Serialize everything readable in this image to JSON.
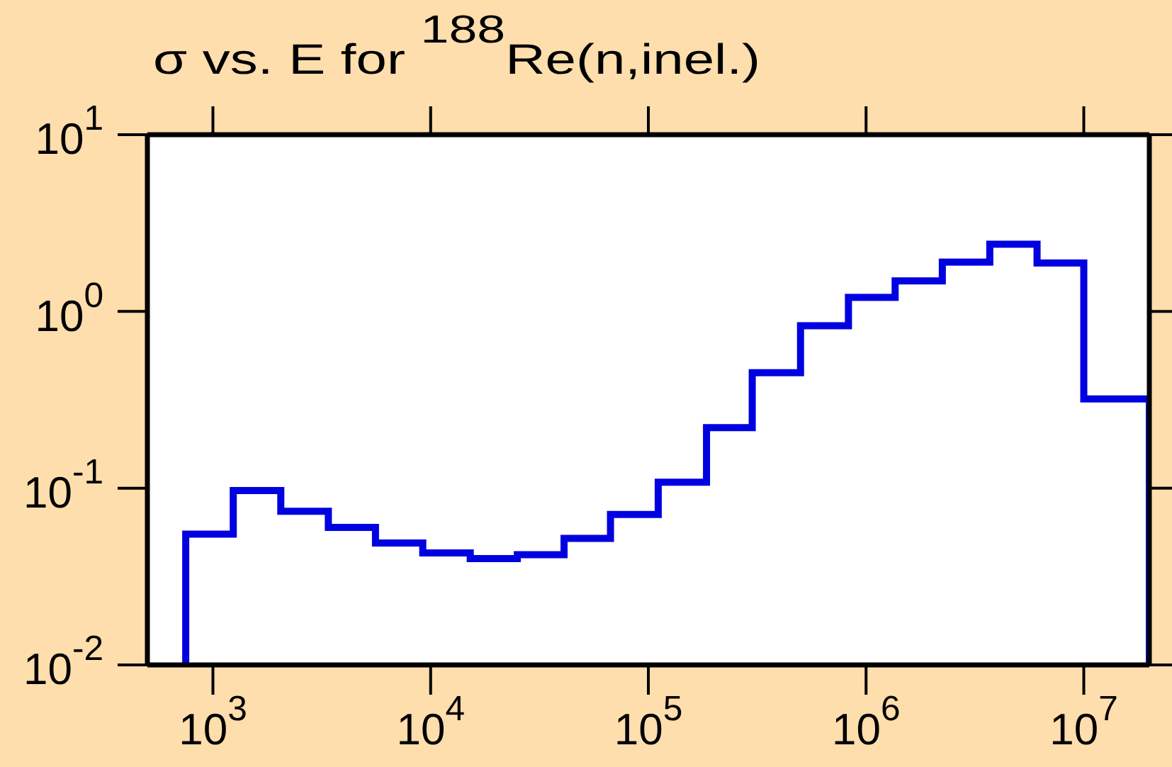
{
  "chart_data": {
    "type": "histogram",
    "title": "σ vs. E for $^{188}$Re(n,inel.)",
    "bins": [
      750,
      1240,
      2050,
      3390,
      5580,
      9200,
      15200,
      25000,
      41000,
      67000,
      111000,
      185000,
      300000,
      500000,
      830000,
      1360000,
      2240000,
      3700000,
      6100000,
      10000000,
      20000000
    ],
    "values": [
      0.055,
      0.097,
      0.074,
      0.06,
      0.049,
      0.043,
      0.04,
      0.042,
      0.052,
      0.071,
      0.108,
      0.22,
      0.45,
      0.83,
      1.2,
      1.49,
      1.9,
      2.4,
      1.88,
      0.32
    ],
    "color": "#0000e0",
    "log": "xy",
    "xlim": [
      500,
      20000000
    ],
    "ylim": [
      0.01,
      10
    ],
    "xticks": [
      {
        "value": 1000,
        "label": "10$^{3}$"
      },
      {
        "value": 10000,
        "label": "10$^{4}$"
      },
      {
        "value": 100000,
        "label": "10$^{5}$"
      },
      {
        "value": 1000000,
        "label": "10$^{6}$"
      },
      {
        "value": 10000000,
        "label": "10$^{7}$"
      }
    ],
    "yticks": [
      {
        "value": 0.01,
        "label": "10$^{-2}$"
      },
      {
        "value": 0.1,
        "label": "10$^{-1}$"
      },
      {
        "value": 1,
        "label": "10$^{0}$"
      },
      {
        "value": 10,
        "label": "10$^{1}$"
      }
    ]
  }
}
